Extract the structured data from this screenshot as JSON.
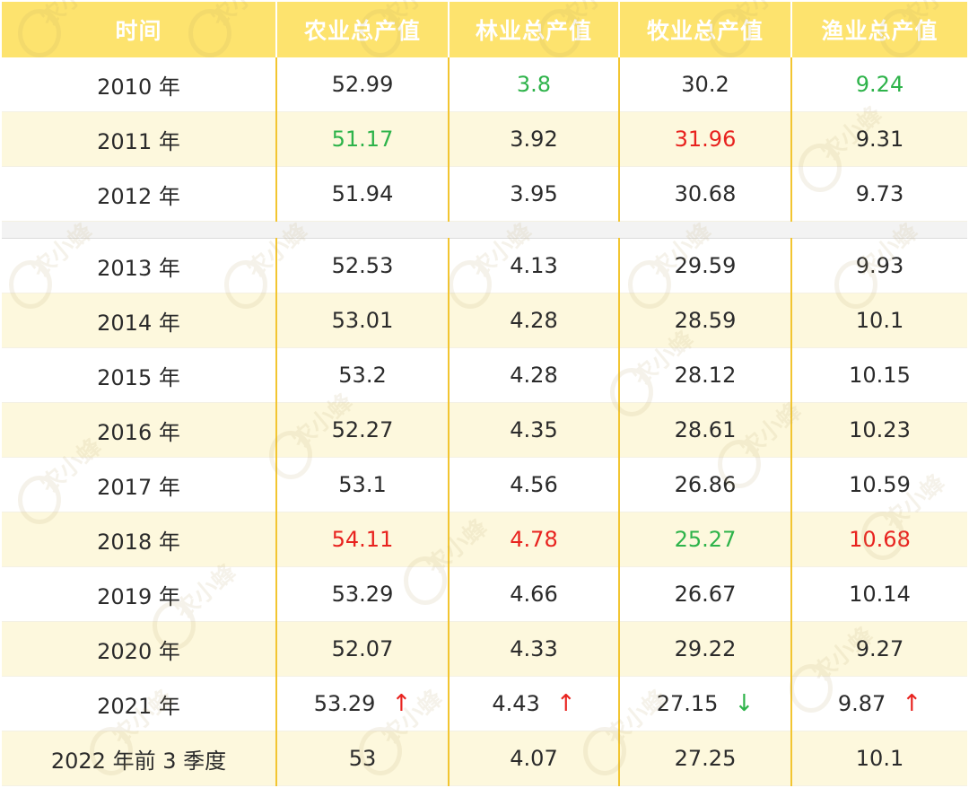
{
  "headers": [
    "时间",
    "农业总产值",
    "林业总产值",
    "牧业总产值",
    "渔业总产值"
  ],
  "watermark_text": "农小蜂",
  "rows": [
    {
      "year": "2010 年",
      "c": [
        {
          "v": "52.99",
          "color": ""
        },
        {
          "v": "3.8",
          "color": "green"
        },
        {
          "v": "30.2",
          "color": ""
        },
        {
          "v": "9.24",
          "color": "green"
        }
      ]
    },
    {
      "year": "2011 年",
      "c": [
        {
          "v": "51.17",
          "color": "green"
        },
        {
          "v": "3.92",
          "color": ""
        },
        {
          "v": "31.96",
          "color": "red"
        },
        {
          "v": "9.31",
          "color": ""
        }
      ]
    },
    {
      "year": "2012 年",
      "c": [
        {
          "v": "51.94",
          "color": ""
        },
        {
          "v": "3.95",
          "color": ""
        },
        {
          "v": "30.68",
          "color": ""
        },
        {
          "v": "9.73",
          "color": ""
        }
      ]
    },
    {
      "year": "2013 年",
      "c": [
        {
          "v": "52.53",
          "color": ""
        },
        {
          "v": "4.13",
          "color": ""
        },
        {
          "v": "29.59",
          "color": ""
        },
        {
          "v": "9.93",
          "color": ""
        }
      ]
    },
    {
      "year": "2014 年",
      "c": [
        {
          "v": "53.01",
          "color": ""
        },
        {
          "v": "4.28",
          "color": ""
        },
        {
          "v": "28.59",
          "color": ""
        },
        {
          "v": "10.1",
          "color": ""
        }
      ]
    },
    {
      "year": "2015 年",
      "c": [
        {
          "v": "53.2",
          "color": ""
        },
        {
          "v": "4.28",
          "color": ""
        },
        {
          "v": "28.12",
          "color": ""
        },
        {
          "v": "10.15",
          "color": ""
        }
      ]
    },
    {
      "year": "2016 年",
      "c": [
        {
          "v": "52.27",
          "color": ""
        },
        {
          "v": "4.35",
          "color": ""
        },
        {
          "v": "28.61",
          "color": ""
        },
        {
          "v": "10.23",
          "color": ""
        }
      ]
    },
    {
      "year": "2017 年",
      "c": [
        {
          "v": "53.1",
          "color": ""
        },
        {
          "v": "4.56",
          "color": ""
        },
        {
          "v": "26.86",
          "color": ""
        },
        {
          "v": "10.59",
          "color": ""
        }
      ]
    },
    {
      "year": "2018 年",
      "c": [
        {
          "v": "54.11",
          "color": "red"
        },
        {
          "v": "4.78",
          "color": "red"
        },
        {
          "v": "25.27",
          "color": "green"
        },
        {
          "v": "10.68",
          "color": "red"
        }
      ]
    },
    {
      "year": "2019 年",
      "c": [
        {
          "v": "53.29",
          "color": ""
        },
        {
          "v": "4.66",
          "color": ""
        },
        {
          "v": "26.67",
          "color": ""
        },
        {
          "v": "10.14",
          "color": ""
        }
      ]
    },
    {
      "year": "2020 年",
      "c": [
        {
          "v": "52.07",
          "color": ""
        },
        {
          "v": "4.33",
          "color": ""
        },
        {
          "v": "29.22",
          "color": ""
        },
        {
          "v": "9.27",
          "color": ""
        }
      ]
    },
    {
      "year": "2021 年",
      "c": [
        {
          "v": "53.29",
          "color": "",
          "arrow": "↑",
          "arrow_color": "red"
        },
        {
          "v": "4.43",
          "color": "",
          "arrow": "↑",
          "arrow_color": "red"
        },
        {
          "v": "27.15",
          "color": "",
          "arrow": "↓",
          "arrow_color": "green"
        },
        {
          "v": "9.87",
          "color": "",
          "arrow": "↑",
          "arrow_color": "red"
        }
      ]
    },
    {
      "year": "2022 年前 3 季度",
      "c": [
        {
          "v": "53",
          "color": ""
        },
        {
          "v": "4.07",
          "color": ""
        },
        {
          "v": "27.25",
          "color": ""
        },
        {
          "v": "10.1",
          "color": ""
        }
      ]
    }
  ],
  "colors": {
    "header_bg": "#fde36e",
    "divider": "#f2c531",
    "stripe": "#fdf8dd",
    "green": "#2eb34a",
    "red": "#e8231f"
  }
}
